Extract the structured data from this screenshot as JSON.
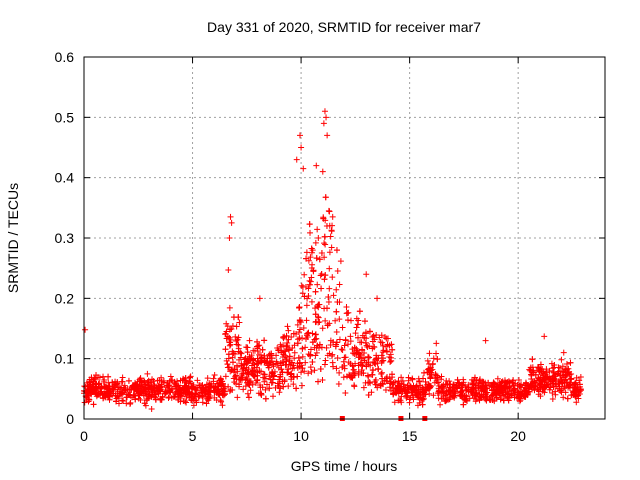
{
  "chart_data": {
    "type": "scatter",
    "title": "Day 331 of 2020, SRMTID for receiver mar7",
    "xlabel": "GPS time / hours",
    "ylabel": "SRMTID / TECUs",
    "xlim": [
      0,
      24
    ],
    "ylim": [
      0,
      0.6
    ],
    "xticks": [
      "0",
      "5",
      "10",
      "15",
      "20"
    ],
    "yticks": [
      "0",
      "0.1",
      "0.2",
      "0.3",
      "0.4",
      "0.5",
      "0.6"
    ],
    "grid": true,
    "marker": "+",
    "color": "#ff0000",
    "time_range": [
      0,
      22.9
    ],
    "baseline_typical": [
      0.02,
      0.1
    ],
    "peak_activity_interval": [
      9.5,
      12.5
    ],
    "peak_value": 0.51,
    "notable_points": [
      {
        "x": 0.05,
        "y": 0.148
      },
      {
        "x": 6.75,
        "y": 0.335
      },
      {
        "x": 6.8,
        "y": 0.325
      },
      {
        "x": 6.7,
        "y": 0.3
      },
      {
        "x": 6.65,
        "y": 0.247
      },
      {
        "x": 8.1,
        "y": 0.2
      },
      {
        "x": 9.8,
        "y": 0.43
      },
      {
        "x": 9.95,
        "y": 0.47
      },
      {
        "x": 10.0,
        "y": 0.45
      },
      {
        "x": 10.1,
        "y": 0.415
      },
      {
        "x": 10.7,
        "y": 0.42
      },
      {
        "x": 11.05,
        "y": 0.49
      },
      {
        "x": 11.1,
        "y": 0.51
      },
      {
        "x": 11.15,
        "y": 0.5
      },
      {
        "x": 11.2,
        "y": 0.47
      },
      {
        "x": 11.0,
        "y": 0.41
      },
      {
        "x": 13.0,
        "y": 0.24
      },
      {
        "x": 13.5,
        "y": 0.2
      },
      {
        "x": 18.5,
        "y": 0.13
      },
      {
        "x": 21.2,
        "y": 0.137
      },
      {
        "x": 22.1,
        "y": 0.11
      }
    ],
    "axis_markers_x": [
      11.9,
      14.6,
      15.7
    ]
  }
}
